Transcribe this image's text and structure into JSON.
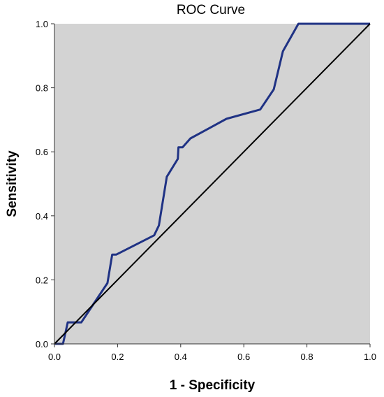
{
  "chart_data": {
    "type": "line",
    "title": "ROC Curve",
    "xlabel": "1 - Specificity",
    "ylabel": "Sensitivity",
    "xlim": [
      0,
      1
    ],
    "ylim": [
      0,
      1
    ],
    "x_ticks": [
      "0.0",
      "0.2",
      "0.4",
      "0.6",
      "0.8",
      "1.0"
    ],
    "y_ticks": [
      "0.0",
      "0.2",
      "0.4",
      "0.6",
      "0.8",
      "1.0"
    ],
    "x_tick_values": [
      0,
      0.2,
      0.4,
      0.6,
      0.8,
      1.0
    ],
    "y_tick_values": [
      0,
      0.2,
      0.4,
      0.6,
      0.8,
      1.0
    ],
    "grid": false,
    "background_color": "#d3d3d3",
    "series": [
      {
        "color": "#1f3284",
        "x": [
          0.0,
          0.027,
          0.042,
          0.085,
          0.168,
          0.183,
          0.196,
          0.316,
          0.331,
          0.356,
          0.391,
          0.393,
          0.406,
          0.431,
          0.491,
          0.545,
          0.652,
          0.695,
          0.724,
          0.773,
          1.0
        ],
        "y": [
          0.0,
          0.0,
          0.067,
          0.067,
          0.19,
          0.279,
          0.279,
          0.339,
          0.37,
          0.522,
          0.578,
          0.614,
          0.614,
          0.642,
          0.674,
          0.703,
          0.732,
          0.795,
          0.914,
          1.0,
          1.0
        ]
      },
      {
        "color": "#000000",
        "x": [
          0,
          1
        ],
        "y": [
          0,
          1
        ]
      }
    ]
  }
}
